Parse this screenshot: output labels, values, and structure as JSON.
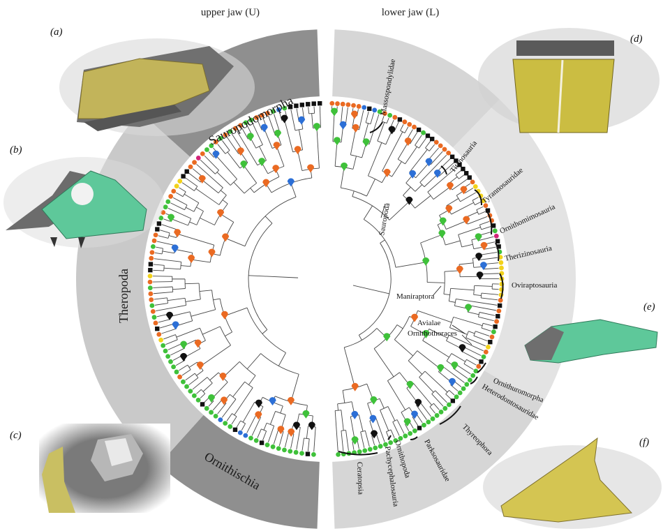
{
  "titles": {
    "upper": "upper jaw (U)",
    "lower": "lower jaw (L)"
  },
  "panels": {
    "a": "(a)",
    "b": "(b)",
    "c": "(c)",
    "d": "(d)",
    "e": "(e)",
    "f": "(f)"
  },
  "ring_labels": {
    "sauropodomorpha": "Sauropodomorpha",
    "theropoda": "Theropoda",
    "ornithischia": "Ornithischia"
  },
  "clades": {
    "massospondylidae": "Massospondylidae",
    "titanosauria": "Titanosauria",
    "sauropoda": "Sauropoda",
    "tyrannosauridae": "Tyrannosauridae",
    "ornithomimosauria": "Ornithomimosauria",
    "therizinosauria": "Therizinosauria",
    "oviraptosauria": "Oviraptosauria",
    "maniraptora": "Maniraptora",
    "avialae": "Avialae",
    "ornithothoraces": "Ornithothoraces",
    "ornithuromorpha": "Ornithuromorpha",
    "heterodontosauridae": "Heterodontosauridae",
    "thyreophora": "Thyreophora",
    "parksosauridae": "Parksosauridae",
    "ornithopoda": "Ornithopoda",
    "pachycephalosauria": "Pachycephalosauria",
    "ceratopsia": "Ceratopsia"
  },
  "colors": {
    "ring_light": "#c9c9c9",
    "ring_dark": "#8f8f8f",
    "ring_lower_light": "#d6d6d6",
    "fossil_yellow": "#cbbf5a",
    "fossil_green": "#5cc79b",
    "tip_orange": "#ea6a22",
    "tip_green": "#3fc13a",
    "tip_black": "#111111",
    "tip_blue": "#2c6fd6",
    "tip_yellow": "#f2d21b",
    "tip_magenta": "#d3247a"
  },
  "tips": {
    "left": [
      "black",
      "black",
      "black",
      "black",
      "black",
      "black",
      "green",
      "blue",
      "green",
      "orange",
      "orange",
      "orange",
      "green",
      "green",
      "orange",
      "orange",
      "green",
      "orange",
      "green",
      "orange",
      "green",
      "green",
      "orange",
      "magenta",
      "orange",
      "orange",
      "black",
      "black",
      "yellow",
      "yellow",
      "orange",
      "orange",
      "green",
      "green",
      "orange",
      "green",
      "black",
      "black",
      "orange",
      "orange",
      "green",
      "orange",
      "orange",
      "black",
      "black",
      "yellow",
      "orange",
      "green",
      "orange",
      "orange",
      "green",
      "orange",
      "green",
      "orange",
      "black",
      "orange",
      "yellow",
      "green",
      "green",
      "green",
      "green",
      "green",
      "green",
      "orange",
      "green",
      "green",
      "green",
      "green",
      "green",
      "black",
      "green",
      "green",
      "green",
      "blue",
      "green",
      "green",
      "black",
      "blue",
      "blue",
      "green",
      "green",
      "black",
      "green",
      "green",
      "green",
      "green",
      "green",
      "green",
      "green",
      "black",
      "green"
    ],
    "right": [
      "orange",
      "orange",
      "orange",
      "orange",
      "orange",
      "orange",
      "blue",
      "black",
      "blue",
      "green",
      "orange",
      "green",
      "orange",
      "black",
      "orange",
      "orange",
      "orange",
      "black",
      "green",
      "black",
      "black",
      "orange",
      "orange",
      "orange",
      "orange",
      "black",
      "black",
      "black",
      "black",
      "black",
      "black",
      "orange",
      "yellow",
      "yellow",
      "yellow",
      "yellow",
      "orange",
      "black",
      "orange",
      "orange",
      "black",
      "green",
      "magenta",
      "black",
      "black",
      "green",
      "yellow",
      "yellow",
      "yellow",
      "yellow",
      "yellow",
      "yellow",
      "yellow",
      "yellow",
      "orange",
      "black",
      "orange",
      "black",
      "orange",
      "black",
      "green",
      "orange",
      "black",
      "yellow",
      "orange",
      "green",
      "black",
      "orange",
      "green",
      "green",
      "green",
      "green",
      "green",
      "green",
      "green",
      "black",
      "green",
      "green",
      "green",
      "green",
      "green",
      "green",
      "green",
      "black",
      "green",
      "green",
      "green",
      "green",
      "green",
      "green",
      "green",
      "green",
      "green",
      "green",
      "green",
      "green",
      "green",
      "green",
      "green",
      "green"
    ]
  }
}
